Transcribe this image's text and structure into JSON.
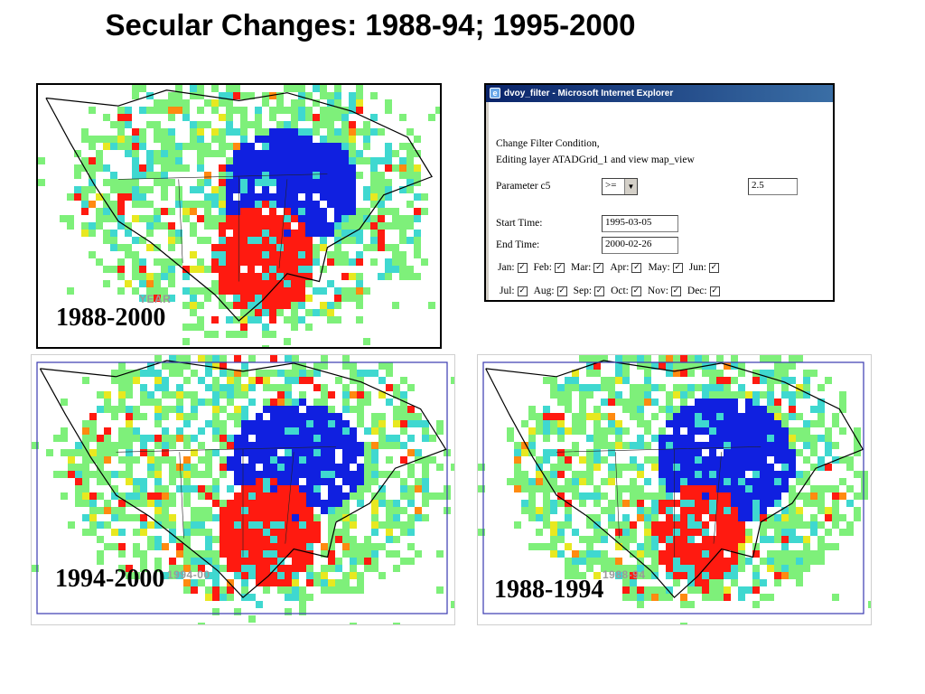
{
  "slide": {
    "title": "Secular Changes: 1988-94; 1995-2000"
  },
  "maps": [
    {
      "label": "1988-2000",
      "sublabel": "YEAR"
    },
    {
      "label": "1994-2000",
      "sublabel": "1994-00"
    },
    {
      "label": "1988-1994",
      "sublabel": "1988-94"
    }
  ],
  "dialog": {
    "title": "dvoy_filter - Microsoft Internet Explorer",
    "line1": "Change Filter Condition,",
    "line2": "Editing layer ATADGrid_1 and view map_view",
    "param_label": "Parameter c5",
    "operator": ">=",
    "param_value": "2.5",
    "start_label": "Start Time:",
    "start_value": "1995-03-05",
    "end_label": "End Time:",
    "end_value": "2000-02-26",
    "months_row1": [
      "Jan:",
      "Feb:",
      "Mar:",
      "Apr:",
      "May:",
      "Jun:"
    ],
    "months_row2": [
      "Jul:",
      "Aug:",
      "Sep:",
      "Oct:",
      "Nov:",
      "Dec:"
    ],
    "check_glyph": "☑"
  },
  "colors": {
    "green": "#7ef07a",
    "cyan": "#3fd8d0",
    "blue": "#1020e0",
    "red": "#ff1a10",
    "yellow": "#e8e820",
    "orange": "#ff8a10"
  }
}
